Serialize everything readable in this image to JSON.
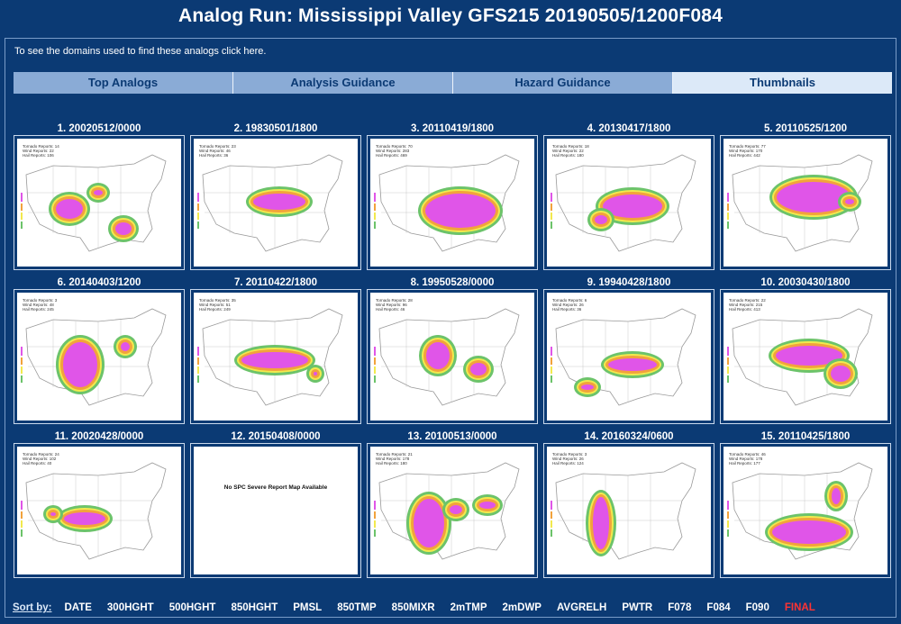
{
  "page": {
    "title": "Analog Run: Mississippi Valley GFS215 20190505/1200F084",
    "info_text": "To see the domains used to find these analogs click here."
  },
  "tabs": [
    {
      "label": "Top Analogs"
    },
    {
      "label": "Analysis Guidance"
    },
    {
      "label": "Hazard Guidance"
    },
    {
      "label": "Thumbnails",
      "active": true
    }
  ],
  "thumbnails": [
    {
      "label": "1. 20020512/0000",
      "legend": [
        "Tornado Reports: 14",
        "Wind Reports: 22",
        "Hail Reports: 106"
      ],
      "has_map": true
    },
    {
      "label": "2. 19830501/1800",
      "legend": [
        "Tornado Reports: 23",
        "Wind Reports: 46",
        "Hail Reports: 36"
      ],
      "has_map": true
    },
    {
      "label": "3. 20110419/1800",
      "legend": [
        "Tornado Reports: 70",
        "Wind Reports: 283",
        "Hail Reports: 469"
      ],
      "has_map": true
    },
    {
      "label": "4. 20130417/1800",
      "legend": [
        "Tornado Reports: 18",
        "Wind Reports: 22",
        "Hail Reports: 180"
      ],
      "has_map": true
    },
    {
      "label": "5. 20110525/1200",
      "legend": [
        "Tornado Reports: 77",
        "Wind Reports: 170",
        "Hail Reports: 442"
      ],
      "has_map": true
    },
    {
      "label": "6. 20140403/1200",
      "legend": [
        "Tornado Reports: 3",
        "Wind Reports: 48",
        "Hail Reports: 245"
      ],
      "has_map": true
    },
    {
      "label": "7. 20110422/1800",
      "legend": [
        "Tornado Reports: 35",
        "Wind Reports: 51",
        "Hail Reports: 249"
      ],
      "has_map": true
    },
    {
      "label": "8. 19950528/0000",
      "legend": [
        "Tornado Reports: 28",
        "Wind Reports: 96",
        "Hail Reports: 46"
      ],
      "has_map": true
    },
    {
      "label": "9. 19940428/1800",
      "legend": [
        "Tornado Reports: 6",
        "Wind Reports: 26",
        "Hail Reports: 36"
      ],
      "has_map": true
    },
    {
      "label": "10. 20030430/1800",
      "legend": [
        "Tornado Reports: 22",
        "Wind Reports: 215",
        "Hail Reports: 413"
      ],
      "has_map": true
    },
    {
      "label": "11. 20020428/0000",
      "legend": [
        "Tornado Reports: 24",
        "Wind Reports: 102",
        "Hail Reports: 40"
      ],
      "has_map": true
    },
    {
      "label": "12. 20150408/0000",
      "legend": [],
      "has_map": false,
      "no_map_text": "No SPC Severe Report Map Available"
    },
    {
      "label": "13. 20100513/0000",
      "legend": [
        "Tornado Reports: 21",
        "Wind Reports: 178",
        "Hail Reports: 180"
      ],
      "has_map": true
    },
    {
      "label": "14. 20160324/0600",
      "legend": [
        "Tornado Reports: 3",
        "Wind Reports: 26",
        "Hail Reports: 124"
      ],
      "has_map": true
    },
    {
      "label": "15. 20110425/1800",
      "legend": [
        "Tornado Reports: 46",
        "Wind Reports: 178",
        "Hail Reports: 177"
      ],
      "has_map": true
    }
  ],
  "sort": {
    "label": "Sort by:",
    "options": [
      "DATE",
      "300HGHT",
      "500HGHT",
      "850HGHT",
      "PMSL",
      "850TMP",
      "850MIXR",
      "2mTMP",
      "2mDWP",
      "AVGRELH",
      "PWTR",
      "F078",
      "F084",
      "F090",
      "FINAL"
    ]
  },
  "colors": {
    "background": "#0b3a74",
    "tab": "#8aabd6",
    "tab_active": "#dce9f8",
    "final_sort": "#ff3333",
    "blob_green": "#6cc36a",
    "blob_yellow": "#f2e94e",
    "blob_orange": "#f2a33c",
    "blob_magenta": "#e055e8"
  }
}
